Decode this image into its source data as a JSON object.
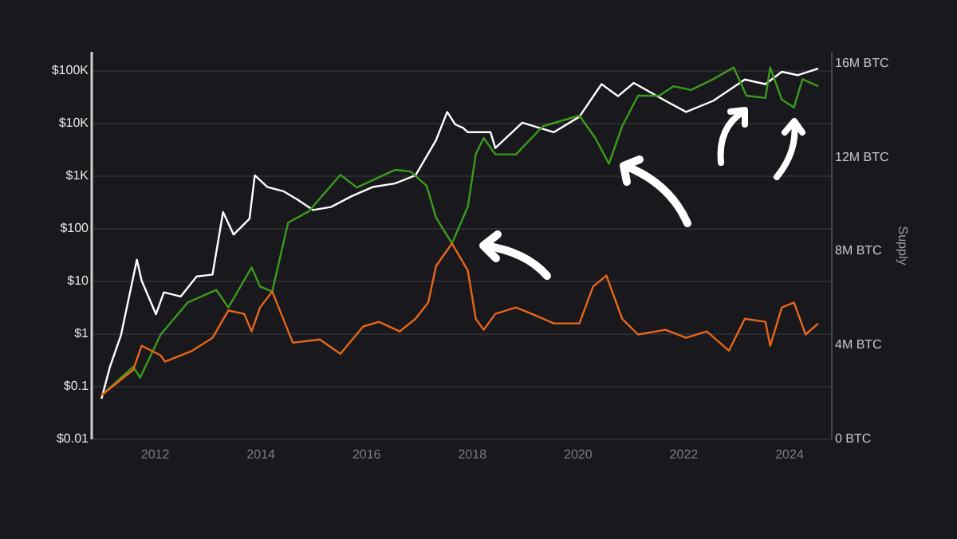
{
  "chart_data": {
    "type": "line",
    "y2label": "Supply",
    "log": "y",
    "grid": "y",
    "legend": false,
    "xlim": [
      2010.8,
      2024.8
    ],
    "xticks": [
      2012,
      2014,
      2016,
      2018,
      2020,
      2022,
      2024
    ],
    "ylim": [
      0.01,
      230000
    ],
    "yticks": [
      {
        "value": 0.01,
        "label": "$0.01"
      },
      {
        "value": 0.1,
        "label": "$0.1"
      },
      {
        "value": 1,
        "label": "$1"
      },
      {
        "value": 10,
        "label": "$10"
      },
      {
        "value": 100,
        "label": "$100"
      },
      {
        "value": 1000,
        "label": "$1K"
      },
      {
        "value": 10000,
        "label": "$10K"
      },
      {
        "value": 100000,
        "label": "$100K"
      }
    ],
    "y2lim": [
      0,
      16.5
    ],
    "y2ticks": [
      {
        "value": 0,
        "label": "0 BTC"
      },
      {
        "value": 4,
        "label": "4M BTC"
      },
      {
        "value": 8,
        "label": "8M BTC"
      },
      {
        "value": 12,
        "label": "12M BTC"
      },
      {
        "value": 16,
        "label": "16M BTC"
      }
    ],
    "series": [
      {
        "color": "#ffffff",
        "x": [
          2011.0,
          2011.16,
          2011.37,
          2011.67,
          2011.76,
          2012.03,
          2012.18,
          2012.5,
          2012.8,
          2013.1,
          2013.3,
          2013.5,
          2013.8,
          2013.9,
          2014.14,
          2014.44,
          2014.7,
          2015.0,
          2015.34,
          2015.73,
          2016.13,
          2016.55,
          2016.94,
          2017.15,
          2017.33,
          2017.54,
          2017.69,
          2017.84,
          2017.93,
          2018.36,
          2018.45,
          2018.96,
          2019.56,
          2020.04,
          2020.46,
          2020.77,
          2021.07,
          2021.67,
          2022.06,
          2022.57,
          2023.17,
          2023.56,
          2023.87,
          2024.17,
          2024.56
        ],
        "values": [
          0.057,
          0.23,
          0.93,
          25,
          10,
          2.3,
          6,
          5,
          12,
          13,
          200,
          75,
          150,
          1000,
          600,
          500,
          350,
          220,
          250,
          400,
          600,
          700,
          1000,
          2300,
          4700,
          16000,
          9300,
          8000,
          6600,
          6600,
          3300,
          10000,
          6600,
          13000,
          54000,
          32000,
          57000,
          26000,
          16000,
          26000,
          66000,
          54000,
          93000,
          80000,
          107000
        ]
      },
      {
        "color": "#3c9a1e",
        "axis": "y2",
        "x": [
          2011.0,
          2011.6,
          2011.73,
          2012.12,
          2012.63,
          2013.17,
          2013.4,
          2013.84,
          2014.0,
          2014.23,
          2014.53,
          2014.92,
          2015.52,
          2015.83,
          2016.55,
          2016.85,
          2017.15,
          2017.33,
          2017.63,
          2017.93,
          2018.08,
          2018.23,
          2018.45,
          2018.84,
          2019.35,
          2020.04,
          2020.34,
          2020.6,
          2020.85,
          2021.15,
          2021.55,
          2021.82,
          2022.15,
          2022.57,
          2022.96,
          2023.2,
          2023.56,
          2023.65,
          2023.87,
          2024.1,
          2024.26,
          2024.56
        ],
        "values": [
          1.84,
          3.06,
          2.59,
          4.43,
          5.79,
          6.33,
          5.58,
          7.29,
          6.47,
          6.26,
          9.19,
          9.67,
          11.23,
          10.69,
          11.44,
          11.37,
          10.76,
          9.4,
          8.31,
          9.87,
          12.1,
          12.8,
          12.1,
          12.1,
          13.3,
          13.75,
          12.8,
          11.7,
          13.3,
          14.6,
          14.6,
          15.0,
          14.84,
          15.3,
          15.8,
          14.6,
          14.5,
          15.8,
          14.43,
          14.1,
          15.3,
          15.0
        ]
      },
      {
        "color": "#e8661a",
        "axis": "y2",
        "x": [
          2011.0,
          2011.6,
          2011.76,
          2012.12,
          2012.2,
          2012.72,
          2013.1,
          2013.4,
          2013.7,
          2013.84,
          2014.0,
          2014.23,
          2014.62,
          2015.13,
          2015.52,
          2015.95,
          2016.25,
          2016.64,
          2016.94,
          2017.18,
          2017.33,
          2017.63,
          2017.93,
          2018.08,
          2018.23,
          2018.45,
          2018.84,
          2019.14,
          2019.56,
          2020.04,
          2020.3,
          2020.55,
          2020.85,
          2021.15,
          2021.67,
          2022.06,
          2022.45,
          2022.87,
          2023.17,
          2023.56,
          2023.65,
          2023.87,
          2024.1,
          2024.32,
          2024.56
        ],
        "values": [
          1.84,
          2.93,
          3.95,
          3.54,
          3.27,
          3.74,
          4.29,
          5.45,
          5.31,
          4.56,
          5.58,
          6.26,
          4.08,
          4.22,
          3.61,
          4.77,
          4.97,
          4.56,
          5.1,
          5.79,
          7.35,
          8.31,
          7.15,
          5.1,
          4.63,
          5.31,
          5.58,
          5.31,
          4.9,
          4.9,
          6.47,
          6.94,
          5.1,
          4.43,
          4.63,
          4.29,
          4.56,
          3.74,
          5.1,
          4.97,
          3.95,
          5.58,
          5.79,
          4.43,
          4.9
        ]
      }
    ]
  }
}
